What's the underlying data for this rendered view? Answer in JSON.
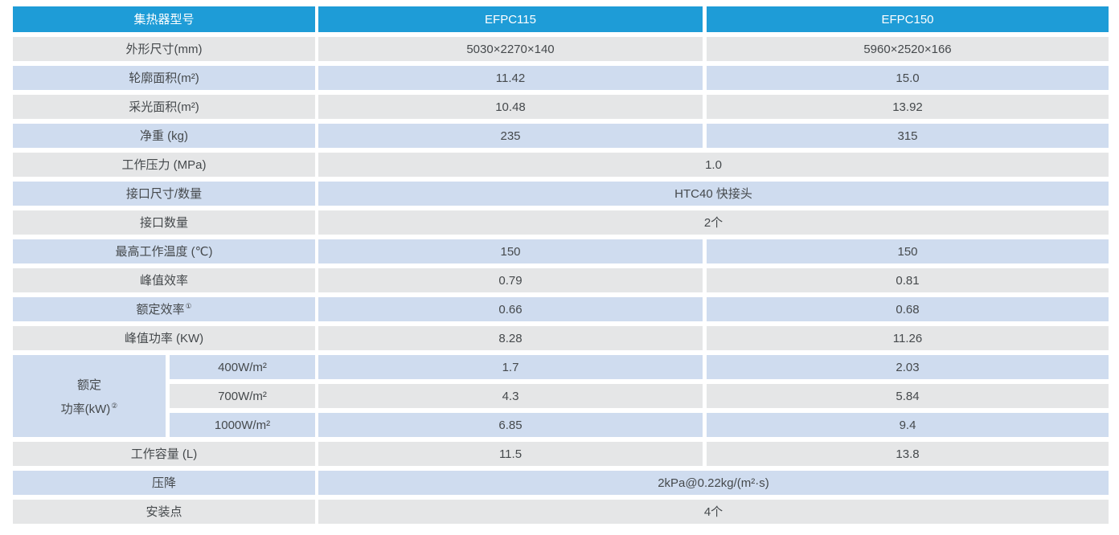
{
  "colors": {
    "header_bg": "#1e9cd7",
    "header_text": "#ffffff",
    "row_gray": "#e5e6e7",
    "row_blue": "#cfdcef",
    "text": "#45494c"
  },
  "header": {
    "label": "集热器型号",
    "model1": "EFPC115",
    "model2": "EFPC150"
  },
  "rows": [
    {
      "label": "外形尺寸(mm)",
      "v1": "5030×2270×140",
      "v2": "5960×2520×166"
    },
    {
      "label": "轮廓面积(m²)",
      "v1": "11.42",
      "v2": "15.0"
    },
    {
      "label": "采光面积(m²)",
      "v1": "10.48",
      "v2": "13.92"
    },
    {
      "label": "净重 (kg)",
      "v1": "235",
      "v2": "315"
    },
    {
      "label": "工作压力 (MPa)",
      "value": "1.0"
    },
    {
      "label": "接口尺寸/数量",
      "value": "HTC40 快接头"
    },
    {
      "label": "接口数量",
      "value": "2个"
    },
    {
      "label": "最高工作温度 (℃)",
      "v1": "150",
      "v2": "150"
    },
    {
      "label": "峰值效率",
      "v1": "0.79",
      "v2": "0.81"
    },
    {
      "label": "额定效率",
      "sup": "①",
      "v1": "0.66",
      "v2": "0.68"
    },
    {
      "label": "峰值功率 (KW)",
      "v1": "8.28",
      "v2": "11.26"
    },
    {
      "label": "工作容量 (L)",
      "v1": "11.5",
      "v2": "13.8"
    },
    {
      "label": "压降",
      "value": "2kPa@0.22kg/(m²·s)"
    },
    {
      "label": "安装点",
      "value": "4个"
    }
  ],
  "rated_power": {
    "line1": "额定",
    "line2": "功率(kW)",
    "sup": "②",
    "rows": [
      {
        "sub": "400W/m²",
        "v1": "1.7",
        "v2": "2.03"
      },
      {
        "sub": "700W/m²",
        "v1": "4.3",
        "v2": "5.84"
      },
      {
        "sub": "1000W/m²",
        "v1": "6.85",
        "v2": "9.4"
      }
    ]
  }
}
